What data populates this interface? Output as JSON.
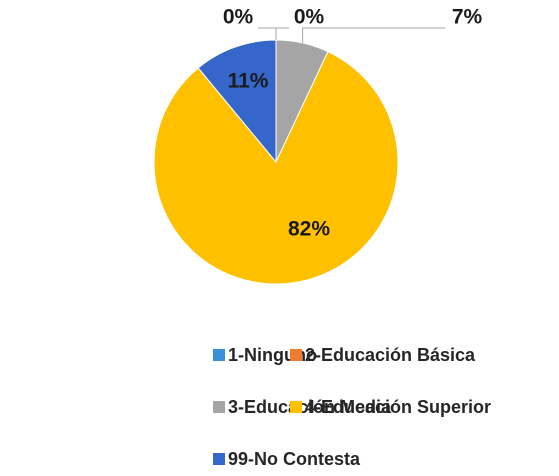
{
  "chart_data": {
    "type": "pie",
    "categories": [
      "1-Ninguno",
      "2-Educación Básica",
      "3-Educación Media",
      "4-Educación Superior",
      "99-No Contesta"
    ],
    "values": [
      0,
      0,
      7,
      82,
      11
    ],
    "value_labels": [
      "0%",
      "0%",
      "7%",
      "82%",
      "11%"
    ],
    "colors": [
      "#3a8fd9",
      "#ed7d31",
      "#a5a5a5",
      "#ffc000",
      "#3467c9"
    ],
    "legend": "bottom"
  }
}
